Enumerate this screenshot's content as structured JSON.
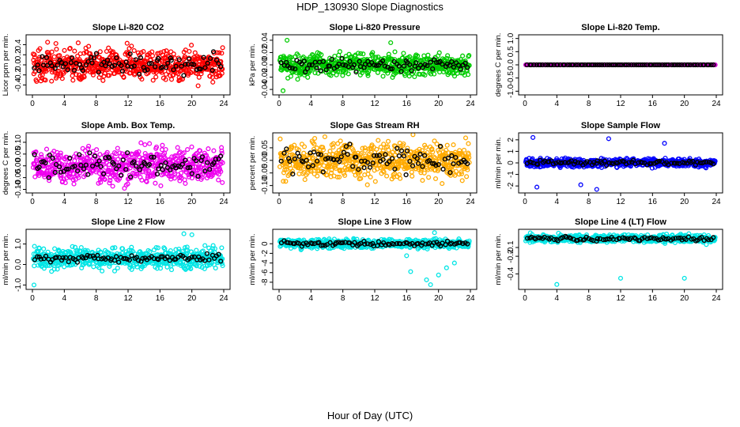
{
  "figure": {
    "title": "HDP_130930  Slope Diagnostics",
    "xlabel": "Hour of Day (UTC)"
  },
  "chart_data": [
    {
      "type": "scatter",
      "title": "Slope Li-820 CO2",
      "ylabel": "Licor ppm per min.",
      "color": "#ff0000",
      "xlim": [
        0,
        24
      ],
      "ylim": [
        -0.55,
        0.55
      ],
      "yticks": [
        -0.4,
        -0.2,
        0.0,
        0.2,
        0.4
      ],
      "ytick_labels": [
        "-0.4",
        "-0.2",
        "0.0",
        "0.2",
        "0.4"
      ],
      "xticks": [
        0,
        4,
        8,
        12,
        16,
        20,
        24
      ],
      "xtick_labels": [
        "0",
        "4",
        "8",
        "12",
        "16",
        "20",
        "24"
      ],
      "center": 0.0,
      "spread": 0.22,
      "black_spread": 0.15,
      "outliers": []
    },
    {
      "type": "scatter",
      "title": "Slope Li-820 Pressure",
      "ylabel": "kPa per min.",
      "color": "#00cc00",
      "xlim": [
        0,
        24
      ],
      "ylim": [
        -0.045,
        0.045
      ],
      "yticks": [
        -0.04,
        -0.02,
        0.0,
        0.02,
        0.04
      ],
      "ytick_labels": [
        "-0.04",
        "-0.02",
        "0.00",
        "0.02",
        "0.04"
      ],
      "xticks": [
        0,
        4,
        8,
        12,
        16,
        20,
        24
      ],
      "xtick_labels": [
        "0",
        "4",
        "8",
        "12",
        "16",
        "20",
        "24"
      ],
      "center": 0.0,
      "spread": 0.012,
      "black_spread": 0.008,
      "outliers": [
        {
          "x": 0.5,
          "y": -0.042
        },
        {
          "x": 1.0,
          "y": 0.04
        },
        {
          "x": 14.0,
          "y": 0.036
        }
      ]
    },
    {
      "type": "scatter",
      "title": "Slope Li-820 Temp.",
      "ylabel": "degrees C per min.",
      "color": "#cc00cc",
      "xlim": [
        0,
        24
      ],
      "ylim": [
        -1.05,
        1.05
      ],
      "yticks": [
        -1.0,
        -0.5,
        0.0,
        0.5,
        1.0
      ],
      "ytick_labels": [
        "-1.0",
        "-0.5",
        "0.0",
        "0.5",
        "1.0"
      ],
      "xticks": [
        0,
        4,
        8,
        12,
        16,
        20,
        24
      ],
      "xtick_labels": [
        "0",
        "4",
        "8",
        "12",
        "16",
        "20",
        "24"
      ],
      "center": 0.0,
      "spread": 0.0,
      "black_spread": 0.0,
      "outliers": []
    },
    {
      "type": "scatter",
      "title": "Slope Amb. Box Temp.",
      "ylabel": "degrees C per min.",
      "color": "#ee00ee",
      "xlim": [
        0,
        24
      ],
      "ylim": [
        -0.105,
        0.13
      ],
      "yticks": [
        -0.1,
        -0.05,
        0.0,
        0.05,
        0.1
      ],
      "ytick_labels": [
        "-0.10",
        "-0.05",
        "0.00",
        "0.05",
        "0.10"
      ],
      "xticks": [
        0,
        4,
        8,
        12,
        16,
        20,
        24
      ],
      "xtick_labels": [
        "0",
        "4",
        "8",
        "12",
        "16",
        "20",
        "24"
      ],
      "center": 0.0,
      "spread": 0.05,
      "black_spread": 0.04,
      "outliers": []
    },
    {
      "type": "scatter",
      "title": "Slope Gas Stream RH",
      "ylabel": "percent per min.",
      "color": "#ffaa00",
      "xlim": [
        0,
        24
      ],
      "ylim": [
        -0.12,
        0.1
      ],
      "yticks": [
        -0.1,
        -0.05,
        0.0,
        0.05
      ],
      "ytick_labels": [
        "-0.10",
        "-0.05",
        "0.00",
        "0.05"
      ],
      "xticks": [
        0,
        4,
        8,
        12,
        16,
        20,
        24
      ],
      "xtick_labels": [
        "0",
        "4",
        "8",
        "12",
        "16",
        "20",
        "24"
      ],
      "center": 0.0,
      "spread": 0.05,
      "black_spread": 0.04,
      "outliers": []
    },
    {
      "type": "scatter",
      "title": "Slope Sample Flow",
      "ylabel": "ml/min per min.",
      "color": "#0000ff",
      "xlim": [
        0,
        24
      ],
      "ylim": [
        -2.4,
        2.4
      ],
      "yticks": [
        -2,
        -1,
        0,
        1,
        2
      ],
      "ytick_labels": [
        "-2",
        "-1",
        "0",
        "1",
        "2"
      ],
      "xticks": [
        0,
        4,
        8,
        12,
        16,
        20,
        24
      ],
      "xtick_labels": [
        "0",
        "4",
        "8",
        "12",
        "16",
        "20",
        "24"
      ],
      "center": 0.0,
      "spread": 0.25,
      "black_spread": 0.15,
      "outliers": [
        {
          "x": 1.0,
          "y": 2.2
        },
        {
          "x": 1.5,
          "y": -2.1
        },
        {
          "x": 7.0,
          "y": -1.9
        },
        {
          "x": 9.0,
          "y": -2.3
        },
        {
          "x": 10.5,
          "y": 2.1
        },
        {
          "x": 17.5,
          "y": 1.7
        }
      ]
    },
    {
      "type": "scatter",
      "title": "Slope Line 2 Flow",
      "ylabel": "ml/min per min.",
      "color": "#00e5e5",
      "xlim": [
        0,
        24
      ],
      "ylim": [
        -1.1,
        1.6
      ],
      "yticks": [
        -1.0,
        0.0,
        1.0
      ],
      "ytick_labels": [
        "-1.0",
        "0.0",
        "1.0"
      ],
      "xticks": [
        0,
        4,
        8,
        12,
        16,
        20,
        24
      ],
      "xtick_labels": [
        "0",
        "4",
        "8",
        "12",
        "16",
        "20",
        "24"
      ],
      "center": 0.3,
      "spread": 0.35,
      "black_spread": 0.15,
      "outliers": [
        {
          "x": 0.2,
          "y": -1.0
        },
        {
          "x": 19.0,
          "y": 1.5
        },
        {
          "x": 20.0,
          "y": 1.45
        }
      ]
    },
    {
      "type": "scatter",
      "title": "Slope Line 3 Flow",
      "ylabel": "ml/min per min.",
      "color": "#00e5e5",
      "xlim": [
        0,
        24
      ],
      "ylim": [
        -9,
        2.5
      ],
      "yticks": [
        -8,
        -6,
        -4,
        -2,
        0
      ],
      "ytick_labels": [
        "-8",
        "-6",
        "-4",
        "-2",
        "0"
      ],
      "xticks": [
        0,
        4,
        8,
        12,
        16,
        20,
        24
      ],
      "xtick_labels": [
        "0",
        "4",
        "8",
        "12",
        "16",
        "20",
        "24"
      ],
      "center": 0.0,
      "spread": 0.6,
      "black_spread": 0.4,
      "outliers": [
        {
          "x": 16.5,
          "y": -5.8
        },
        {
          "x": 18.5,
          "y": -7.5
        },
        {
          "x": 19.0,
          "y": -8.5
        },
        {
          "x": 20.0,
          "y": -6.5
        },
        {
          "x": 21.0,
          "y": -5.0
        },
        {
          "x": 22.0,
          "y": -4.0
        },
        {
          "x": 19.5,
          "y": 2.3
        },
        {
          "x": 16.0,
          "y": -2.5
        }
      ]
    },
    {
      "type": "scatter",
      "title": "Slope Line 4 (LT) Flow",
      "ylabel": "ml/min per min.",
      "color": "#00e5e5",
      "xlim": [
        0,
        24
      ],
      "ylim": [
        -0.55,
        0.08
      ],
      "yticks": [
        -0.4,
        -0.2,
        -0.1
      ],
      "ytick_labels": [
        "-0.4",
        "-0.2",
        "-0.1"
      ],
      "xticks": [
        0,
        4,
        8,
        12,
        16,
        20,
        24
      ],
      "xtick_labels": [
        "0",
        "4",
        "8",
        "12",
        "16",
        "20",
        "24"
      ],
      "center": 0.0,
      "spread": 0.03,
      "black_spread": 0.02,
      "outliers": [
        {
          "x": 4.0,
          "y": -0.52
        },
        {
          "x": 12.0,
          "y": -0.45
        },
        {
          "x": 20.0,
          "y": -0.45
        }
      ]
    }
  ]
}
